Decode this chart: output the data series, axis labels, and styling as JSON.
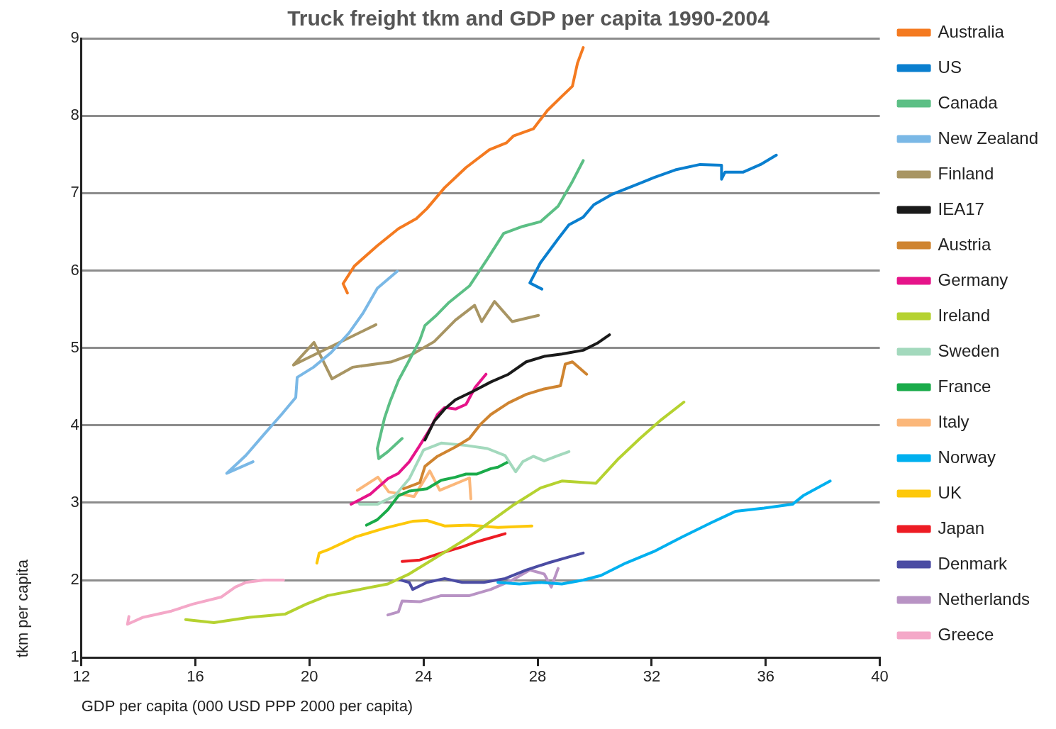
{
  "chart_data": {
    "type": "line",
    "title": "Truck freight tkm and GDP per capita 1990-2004",
    "xlabel": "GDP per capita (000 USD PPP 2000 per capita)",
    "ylabel": "tkm per capita",
    "xlim": [
      12,
      40
    ],
    "xticks": [
      12,
      16,
      20,
      24,
      28,
      32,
      36,
      40
    ],
    "ylim": [
      1,
      9
    ],
    "yticks": [
      1,
      2,
      3,
      4,
      5,
      6,
      7,
      8,
      9
    ],
    "grid": "y",
    "legend": "right",
    "marker": "none",
    "line_style": "solid",
    "series": [
      {
        "name": "Australia",
        "color": "#f47a20",
        "x": [
          21.33,
          21.18,
          21.58,
          22.38,
          23.12,
          23.75,
          24.12,
          24.74,
          25.49,
          26.31,
          26.91,
          27.16,
          27.85,
          28.35,
          28.85,
          29.22,
          29.4,
          29.6
        ],
        "values": [
          5.71,
          5.83,
          6.06,
          6.32,
          6.54,
          6.67,
          6.8,
          7.07,
          7.33,
          7.56,
          7.65,
          7.74,
          7.83,
          8.07,
          8.25,
          8.38,
          8.68,
          8.88
        ]
      },
      {
        "name": "US",
        "color": "#0a7fcf",
        "x": [
          28.15,
          27.73,
          28.1,
          28.72,
          29.1,
          29.6,
          29.97,
          30.59,
          31.34,
          32.08,
          32.83,
          33.7,
          34.45,
          34.45,
          34.57,
          35.2,
          35.82,
          36.37
        ],
        "values": [
          5.76,
          5.84,
          6.1,
          6.41,
          6.59,
          6.69,
          6.85,
          6.98,
          7.09,
          7.2,
          7.3,
          7.37,
          7.36,
          7.18,
          7.27,
          7.27,
          7.37,
          7.49
        ]
      },
      {
        "name": "Canada",
        "color": "#5cbf85",
        "x": [
          23.25,
          22.75,
          22.43,
          22.38,
          22.63,
          22.83,
          23.12,
          23.5,
          23.87,
          24.05,
          24.42,
          24.87,
          25.61,
          26.24,
          26.81,
          27.48,
          28.1,
          28.72,
          29.22,
          29.6
        ],
        "values": [
          3.83,
          3.66,
          3.57,
          3.7,
          4.09,
          4.31,
          4.58,
          4.84,
          5.1,
          5.29,
          5.41,
          5.58,
          5.8,
          6.15,
          6.48,
          6.57,
          6.63,
          6.83,
          7.15,
          7.42
        ]
      },
      {
        "name": "New Zealand",
        "color": "#7ab8e6",
        "x": [
          18.02,
          17.1,
          17.77,
          18.4,
          19.02,
          19.52,
          19.57,
          20.14,
          20.76,
          21.38,
          21.88,
          22.38,
          23.08
        ],
        "values": [
          3.53,
          3.38,
          3.61,
          3.88,
          4.14,
          4.36,
          4.62,
          4.75,
          4.94,
          5.19,
          5.45,
          5.77,
          5.99
        ]
      },
      {
        "name": "Finland",
        "color": "#a89563",
        "x": [
          22.33,
          19.44,
          20.16,
          20.79,
          21.51,
          22.88,
          23.62,
          24.37,
          25.12,
          25.79,
          26.04,
          26.49,
          27.11,
          28.03
        ],
        "values": [
          5.3,
          4.78,
          5.07,
          4.6,
          4.75,
          4.82,
          4.92,
          5.08,
          5.36,
          5.55,
          5.34,
          5.6,
          5.34,
          5.42
        ]
      },
      {
        "name": "IEA17",
        "color": "#1a1a1a",
        "x": [
          24.05,
          24.37,
          24.74,
          25.12,
          25.74,
          26.36,
          26.98,
          27.6,
          28.23,
          28.85,
          29.6,
          30.09,
          30.52
        ],
        "values": [
          3.81,
          4.05,
          4.21,
          4.33,
          4.44,
          4.56,
          4.66,
          4.82,
          4.89,
          4.92,
          4.97,
          5.06,
          5.17
        ]
      },
      {
        "name": "Austria",
        "color": "#cf8430",
        "x": [
          23.3,
          23.87,
          24.05,
          24.49,
          25.12,
          25.61,
          25.99,
          26.36,
          26.98,
          27.6,
          28.23,
          28.8,
          28.97,
          29.22,
          29.72
        ],
        "values": [
          3.18,
          3.26,
          3.47,
          3.6,
          3.72,
          3.83,
          4.01,
          4.14,
          4.29,
          4.4,
          4.47,
          4.51,
          4.79,
          4.82,
          4.66
        ]
      },
      {
        "name": "Germany",
        "color": "#e6148a",
        "x": [
          21.46,
          22.13,
          22.75,
          23.12,
          23.5,
          23.87,
          24.24,
          24.49,
          24.74,
          25.12,
          25.49,
          25.81,
          26.19
        ],
        "values": [
          2.98,
          3.11,
          3.31,
          3.38,
          3.53,
          3.74,
          3.96,
          4.14,
          4.23,
          4.21,
          4.27,
          4.49,
          4.66
        ]
      },
      {
        "name": "Ireland",
        "color": "#b5d230",
        "x": [
          15.66,
          16.65,
          17.9,
          19.14,
          19.89,
          20.64,
          21.63,
          22.75,
          23.5,
          24.12,
          24.87,
          25.61,
          26.36,
          27.11,
          28.1,
          28.85,
          30.04,
          30.84,
          31.59,
          32.33,
          33.13
        ],
        "values": [
          1.49,
          1.45,
          1.52,
          1.56,
          1.69,
          1.8,
          1.87,
          1.95,
          2.08,
          2.22,
          2.39,
          2.56,
          2.76,
          2.96,
          3.19,
          3.28,
          3.25,
          3.57,
          3.83,
          4.07,
          4.3
        ]
      },
      {
        "name": "Sweden",
        "color": "#a3d9bd",
        "x": [
          21.76,
          22.38,
          23,
          23.5,
          24,
          24.62,
          25.49,
          26.24,
          26.86,
          27.23,
          27.48,
          27.85,
          28.23,
          28.72,
          29.1
        ],
        "values": [
          2.98,
          2.98,
          3.09,
          3.31,
          3.68,
          3.77,
          3.74,
          3.7,
          3.61,
          3.4,
          3.53,
          3.6,
          3.54,
          3.61,
          3.66
        ]
      },
      {
        "name": "France",
        "color": "#1aab4a",
        "x": [
          22,
          22.38,
          22.75,
          23.12,
          23.5,
          24.12,
          24.62,
          25.12,
          25.49,
          25.86,
          26.36,
          26.61,
          26.98
        ],
        "values": [
          2.71,
          2.78,
          2.91,
          3.09,
          3.15,
          3.18,
          3.29,
          3.33,
          3.37,
          3.37,
          3.44,
          3.46,
          3.53
        ]
      },
      {
        "name": "Italy",
        "color": "#fbb77a",
        "x": [
          21.68,
          22.4,
          22.78,
          23.67,
          24.22,
          24.57,
          25.61,
          25.66
        ],
        "values": [
          3.16,
          3.33,
          3.14,
          3.08,
          3.41,
          3.16,
          3.32,
          3.05
        ]
      },
      {
        "name": "Norway",
        "color": "#00b0ef",
        "x": [
          26.61,
          27.36,
          28.1,
          28.85,
          29.6,
          30.22,
          31.09,
          32.08,
          33.08,
          34.08,
          34.95,
          35.94,
          36.94,
          37.31,
          38.26
        ],
        "values": [
          1.97,
          1.95,
          1.97,
          1.95,
          2,
          2.06,
          2.22,
          2.37,
          2.56,
          2.74,
          2.89,
          2.93,
          2.98,
          3.09,
          3.28
        ]
      },
      {
        "name": "UK",
        "color": "#fdc80a",
        "x": [
          20.26,
          20.34,
          20.64,
          21.63,
          22.63,
          23.62,
          24.12,
          24.74,
          25.61,
          26.61,
          27.8
        ],
        "values": [
          2.22,
          2.35,
          2.39,
          2.56,
          2.67,
          2.76,
          2.77,
          2.7,
          2.71,
          2.68,
          2.7
        ]
      },
      {
        "name": "Japan",
        "color": "#ed1c24",
        "x": [
          23.25,
          23.87,
          24.62,
          25.36,
          25.74,
          26.11,
          26.86
        ],
        "values": [
          2.24,
          2.26,
          2.35,
          2.43,
          2.48,
          2.52,
          2.6
        ]
      },
      {
        "name": "Denmark",
        "color": "#4b4ca3",
        "x": [
          23.12,
          23.5,
          23.62,
          24.12,
          24.74,
          25.36,
          26.11,
          26.86,
          27.6,
          28.35,
          29.1,
          29.6
        ],
        "values": [
          2.01,
          1.97,
          1.88,
          1.97,
          2.02,
          1.97,
          1.97,
          2.02,
          2.13,
          2.22,
          2.3,
          2.35
        ]
      },
      {
        "name": "Netherlands",
        "color": "#b893c4",
        "x": [
          22.75,
          23.12,
          23.25,
          23.87,
          24.62,
          25.61,
          26.36,
          27.11,
          27.73,
          28.23,
          28.48,
          28.72
        ],
        "values": [
          1.55,
          1.59,
          1.73,
          1.72,
          1.8,
          1.8,
          1.88,
          2,
          2.13,
          2.08,
          1.91,
          2.15
        ]
      },
      {
        "name": "Greece",
        "color": "#f4a8c8",
        "x": [
          13.67,
          13.62,
          14.17,
          15.16,
          15.91,
          16.9,
          17.4,
          17.77,
          18.4,
          19.09
        ],
        "values": [
          1.53,
          1.43,
          1.52,
          1.6,
          1.69,
          1.78,
          1.91,
          1.97,
          2,
          2
        ]
      }
    ]
  }
}
